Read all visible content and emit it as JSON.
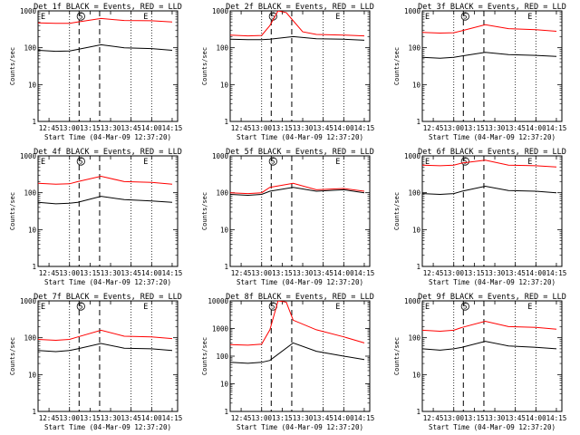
{
  "figure": {
    "xlabel": "Start Time (04-Mar-09 12:37:20)",
    "ylabel": "Counts/sec",
    "colors": {
      "events": "#000000",
      "lld": "#ff0000"
    }
  },
  "chart_data": [
    {
      "type": "line",
      "title": "Det 1f BLACK = Events, RED = LLD",
      "xlabel": "Start Time (04-Mar-09 12:37:20)",
      "ylabel": "Counts/sec",
      "yscale": "log",
      "ylim": [
        1,
        1000
      ],
      "xlim": [
        "12:37",
        "14:19"
      ],
      "x_ticks": [
        "12:45",
        "13:00",
        "13:15",
        "13:30",
        "13:45",
        "14:00",
        "14:15"
      ],
      "y_ticks": [
        "1",
        "10",
        "100",
        "1000"
      ],
      "vlines_dotted": [
        "13:00",
        "13:45",
        "14:00"
      ],
      "vlines_dashed": [
        "13:07",
        "13:22"
      ],
      "markers": [
        {
          "label": "E",
          "x": "12:37"
        },
        {
          "label": "S",
          "x": "13:07"
        },
        {
          "label": "E",
          "x": "13:52"
        }
      ],
      "series": [
        {
          "name": "LLD",
          "x": [
            "12:37",
            "12:50",
            "13:00",
            "13:06",
            "13:23",
            "13:40",
            "14:00",
            "14:15"
          ],
          "y": [
            470,
            460,
            460,
            500,
            620,
            550,
            540,
            500
          ]
        },
        {
          "name": "Events",
          "x": [
            "12:37",
            "12:50",
            "13:00",
            "13:06",
            "13:23",
            "13:40",
            "14:00",
            "14:15"
          ],
          "y": [
            85,
            80,
            82,
            90,
            120,
            100,
            95,
            85
          ]
        }
      ]
    },
    {
      "type": "line",
      "title": "Det 2f BLACK = Events, RED = LLD",
      "xlabel": "Start Time (04-Mar-09 12:37:20)",
      "ylabel": "Counts/sec",
      "yscale": "log",
      "ylim": [
        1,
        1000
      ],
      "xlim": [
        "12:37",
        "14:19"
      ],
      "x_ticks": [
        "12:45",
        "13:00",
        "13:15",
        "13:30",
        "13:45",
        "14:00",
        "14:15"
      ],
      "y_ticks": [
        "1",
        "10",
        "100",
        "1000"
      ],
      "vlines_dotted": [
        "13:00",
        "13:45",
        "14:00"
      ],
      "vlines_dashed": [
        "13:07",
        "13:22"
      ],
      "markers": [
        {
          "label": "S",
          "x": "13:07"
        },
        {
          "label": "E",
          "x": "13:52"
        }
      ],
      "series": [
        {
          "name": "LLD",
          "x": [
            "12:37",
            "12:50",
            "13:00",
            "13:06",
            "13:12",
            "13:18",
            "13:22",
            "13:30",
            "13:40",
            "14:00",
            "14:15"
          ],
          "y": [
            220,
            210,
            215,
            400,
            1000,
            900,
            600,
            270,
            230,
            220,
            210
          ]
        },
        {
          "name": "Events",
          "x": [
            "12:37",
            "12:50",
            "13:00",
            "13:06",
            "13:23",
            "13:40",
            "14:00",
            "14:15"
          ],
          "y": [
            170,
            165,
            165,
            170,
            200,
            175,
            170,
            160
          ]
        }
      ]
    },
    {
      "type": "line",
      "title": "Det 3f BLACK = Events, RED = LLD",
      "xlabel": "Start Time (04-Mar-09 12:37:20)",
      "ylabel": "Counts/sec",
      "yscale": "log",
      "ylim": [
        1,
        1000
      ],
      "xlim": [
        "12:37",
        "14:19"
      ],
      "x_ticks": [
        "12:45",
        "13:00",
        "13:15",
        "13:30",
        "13:45",
        "14:00",
        "14:15"
      ],
      "y_ticks": [
        "1",
        "10",
        "100",
        "1000"
      ],
      "vlines_dotted": [
        "13:00",
        "13:45",
        "14:00"
      ],
      "vlines_dashed": [
        "13:07",
        "13:22"
      ],
      "markers": [
        {
          "label": "E",
          "x": "12:37"
        },
        {
          "label": "S",
          "x": "13:07"
        },
        {
          "label": "E",
          "x": "13:52"
        }
      ],
      "series": [
        {
          "name": "LLD",
          "x": [
            "12:37",
            "12:50",
            "13:00",
            "13:06",
            "13:23",
            "13:40",
            "14:00",
            "14:15"
          ],
          "y": [
            260,
            250,
            255,
            290,
            420,
            330,
            310,
            280
          ]
        },
        {
          "name": "Events",
          "x": [
            "12:37",
            "12:50",
            "13:00",
            "13:06",
            "13:23",
            "13:40",
            "14:00",
            "14:15"
          ],
          "y": [
            55,
            52,
            55,
            60,
            75,
            65,
            62,
            58
          ]
        }
      ]
    },
    {
      "type": "line",
      "title": "Det 4f BLACK = Events, RED = LLD",
      "xlabel": "Start Time (04-Mar-09 12:37:20)",
      "ylabel": "Counts/sec",
      "yscale": "log",
      "ylim": [
        1,
        1000
      ],
      "xlim": [
        "12:37",
        "14:19"
      ],
      "x_ticks": [
        "12:45",
        "13:00",
        "13:15",
        "13:30",
        "13:45",
        "14:00",
        "14:15"
      ],
      "y_ticks": [
        "1",
        "10",
        "100",
        "1000"
      ],
      "vlines_dotted": [
        "13:00",
        "13:45",
        "14:00"
      ],
      "vlines_dashed": [
        "13:07",
        "13:22"
      ],
      "markers": [
        {
          "label": "E",
          "x": "12:37"
        },
        {
          "label": "S",
          "x": "13:07"
        },
        {
          "label": "E",
          "x": "13:52"
        }
      ],
      "series": [
        {
          "name": "LLD",
          "x": [
            "12:37",
            "12:50",
            "13:00",
            "13:06",
            "13:23",
            "13:40",
            "14:00",
            "14:15"
          ],
          "y": [
            180,
            170,
            175,
            200,
            280,
            200,
            190,
            170
          ]
        },
        {
          "name": "Events",
          "x": [
            "12:37",
            "12:50",
            "13:00",
            "13:06",
            "13:23",
            "13:40",
            "14:00",
            "14:15"
          ],
          "y": [
            55,
            50,
            52,
            55,
            80,
            65,
            60,
            55
          ]
        }
      ]
    },
    {
      "type": "line",
      "title": "Det 5f BLACK = Events, RED = LLD",
      "xlabel": "Start Time (04-Mar-09 12:37:20)",
      "ylabel": "Counts/sec",
      "yscale": "log",
      "ylim": [
        1,
        1000
      ],
      "xlim": [
        "12:37",
        "14:19"
      ],
      "x_ticks": [
        "12:45",
        "13:00",
        "13:15",
        "13:30",
        "13:45",
        "14:00",
        "14:15"
      ],
      "y_ticks": [
        "1",
        "10",
        "100",
        "1000"
      ],
      "vlines_dotted": [
        "13:00",
        "13:45",
        "14:00"
      ],
      "vlines_dashed": [
        "13:07",
        "13:22"
      ],
      "markers": [
        {
          "label": "S",
          "x": "13:07"
        },
        {
          "label": "E",
          "x": "13:52"
        }
      ],
      "series": [
        {
          "name": "LLD",
          "x": [
            "12:37",
            "12:50",
            "13:00",
            "13:06",
            "13:23",
            "13:40",
            "14:00",
            "14:15"
          ],
          "y": [
            100,
            95,
            100,
            140,
            180,
            120,
            130,
            110
          ]
        },
        {
          "name": "Events",
          "x": [
            "12:37",
            "12:50",
            "13:00",
            "13:06",
            "13:23",
            "13:40",
            "14:00",
            "14:15"
          ],
          "y": [
            90,
            85,
            90,
            110,
            140,
            110,
            120,
            100
          ]
        }
      ]
    },
    {
      "type": "line",
      "title": "Det 6f BLACK = Events, RED = LLD",
      "xlabel": "Start Time (04-Mar-09 12:37:20)",
      "ylabel": "Counts/sec",
      "yscale": "log",
      "ylim": [
        1,
        1000
      ],
      "xlim": [
        "12:37",
        "14:19"
      ],
      "x_ticks": [
        "12:45",
        "13:00",
        "13:15",
        "13:30",
        "13:45",
        "14:00",
        "14:15"
      ],
      "y_ticks": [
        "1",
        "10",
        "100",
        "1000"
      ],
      "vlines_dotted": [
        "13:00",
        "13:45",
        "14:00"
      ],
      "vlines_dashed": [
        "13:07",
        "13:22"
      ],
      "markers": [
        {
          "label": "E",
          "x": "12:37"
        },
        {
          "label": "S",
          "x": "13:07"
        },
        {
          "label": "E",
          "x": "13:52"
        }
      ],
      "series": [
        {
          "name": "LLD",
          "x": [
            "12:37",
            "12:50",
            "13:00",
            "13:06",
            "13:23",
            "13:40",
            "14:00",
            "14:15"
          ],
          "y": [
            560,
            540,
            560,
            640,
            760,
            560,
            540,
            500
          ]
        },
        {
          "name": "Events",
          "x": [
            "12:37",
            "12:50",
            "13:00",
            "13:06",
            "13:23",
            "13:40",
            "14:00",
            "14:15"
          ],
          "y": [
            95,
            90,
            95,
            110,
            150,
            115,
            110,
            100
          ]
        }
      ]
    },
    {
      "type": "line",
      "title": "Det 7f BLACK = Events, RED = LLD",
      "xlabel": "Start Time (04-Mar-09 12:37:20)",
      "ylabel": "Counts/sec",
      "yscale": "log",
      "ylim": [
        1,
        1000
      ],
      "xlim": [
        "12:37",
        "14:19"
      ],
      "x_ticks": [
        "12:45",
        "13:00",
        "13:15",
        "13:30",
        "13:45",
        "14:00",
        "14:15"
      ],
      "y_ticks": [
        "1",
        "10",
        "100",
        "1000"
      ],
      "vlines_dotted": [
        "13:00",
        "13:45",
        "14:00"
      ],
      "vlines_dashed": [
        "13:07",
        "13:22"
      ],
      "markers": [
        {
          "label": "E",
          "x": "12:37"
        },
        {
          "label": "S",
          "x": "13:07"
        },
        {
          "label": "E",
          "x": "13:52"
        }
      ],
      "series": [
        {
          "name": "LLD",
          "x": [
            "12:37",
            "12:50",
            "13:00",
            "13:06",
            "13:23",
            "13:40",
            "14:00",
            "14:15"
          ],
          "y": [
            90,
            85,
            90,
            105,
            160,
            110,
            105,
            95
          ]
        },
        {
          "name": "Events",
          "x": [
            "12:37",
            "12:50",
            "13:00",
            "13:06",
            "13:23",
            "13:40",
            "14:00",
            "14:15"
          ],
          "y": [
            45,
            42,
            45,
            50,
            70,
            52,
            50,
            45
          ]
        }
      ]
    },
    {
      "type": "line",
      "title": "Det 8f BLACK = Events, RED = LLD",
      "xlabel": "Start Time (04-Mar-09 12:37:20)",
      "ylabel": "Counts/sec",
      "yscale": "log",
      "ylim": [
        1,
        10000
      ],
      "xlim": [
        "12:37",
        "14:19"
      ],
      "x_ticks": [
        "12:45",
        "13:00",
        "13:15",
        "13:30",
        "13:45",
        "14:00",
        "14:15"
      ],
      "y_ticks": [
        "1",
        "10",
        "100",
        "1000",
        "10000"
      ],
      "vlines_dotted": [
        "13:00",
        "13:45",
        "14:00"
      ],
      "vlines_dashed": [
        "13:07",
        "13:22"
      ],
      "markers": [
        {
          "label": "S",
          "x": "13:07"
        },
        {
          "label": "E",
          "x": "13:52"
        }
      ],
      "series": [
        {
          "name": "LLD",
          "x": [
            "12:37",
            "12:50",
            "13:00",
            "13:06",
            "13:12",
            "13:18",
            "13:23",
            "13:40",
            "14:00",
            "14:15"
          ],
          "y": [
            260,
            250,
            270,
            900,
            10000,
            9000,
            2000,
            900,
            500,
            300
          ]
        },
        {
          "name": "Events",
          "x": [
            "12:37",
            "12:50",
            "13:00",
            "13:06",
            "13:23",
            "13:40",
            "14:00",
            "14:15"
          ],
          "y": [
            60,
            55,
            60,
            70,
            300,
            150,
            100,
            75
          ]
        }
      ]
    },
    {
      "type": "line",
      "title": "Det 9f BLACK = Events, RED = LLD",
      "xlabel": "Start Time (04-Mar-09 12:37:20)",
      "ylabel": "Counts/sec",
      "yscale": "log",
      "ylim": [
        1,
        1000
      ],
      "xlim": [
        "12:37",
        "14:19"
      ],
      "x_ticks": [
        "12:45",
        "13:00",
        "13:15",
        "13:30",
        "13:45",
        "14:00",
        "14:15"
      ],
      "y_ticks": [
        "1",
        "10",
        "100",
        "1000"
      ],
      "vlines_dotted": [
        "13:00",
        "13:45",
        "14:00"
      ],
      "vlines_dashed": [
        "13:07",
        "13:22"
      ],
      "markers": [
        {
          "label": "E",
          "x": "12:37"
        },
        {
          "label": "S",
          "x": "13:07"
        },
        {
          "label": "E",
          "x": "13:52"
        }
      ],
      "series": [
        {
          "name": "LLD",
          "x": [
            "12:37",
            "12:50",
            "13:00",
            "13:06",
            "13:23",
            "13:40",
            "14:00",
            "14:15"
          ],
          "y": [
            160,
            150,
            160,
            190,
            280,
            200,
            190,
            170
          ]
        },
        {
          "name": "Events",
          "x": [
            "12:37",
            "12:50",
            "13:00",
            "13:06",
            "13:23",
            "13:40",
            "14:00",
            "14:15"
          ],
          "y": [
            50,
            46,
            50,
            55,
            80,
            60,
            55,
            50
          ]
        }
      ]
    }
  ]
}
